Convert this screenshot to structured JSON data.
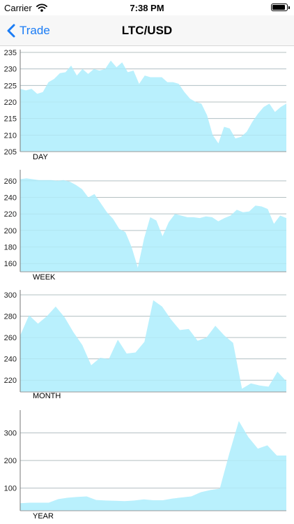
{
  "status_bar": {
    "carrier": "Carrier",
    "time": "7:38 PM",
    "battery_level": 0.9
  },
  "nav": {
    "back_label": "Trade",
    "title": "LTC/USD"
  },
  "colors": {
    "accent": "#1a7cf5",
    "area_fill": "#b9f0fd",
    "grid": "#bdbdbd"
  },
  "chart_data": [
    {
      "type": "area",
      "label": "DAY",
      "ylim": [
        205,
        235
      ],
      "yticks": [
        205,
        210,
        215,
        220,
        225,
        230,
        235
      ],
      "grid": true,
      "values": [
        224,
        223.5,
        224,
        222.5,
        223,
        226,
        227,
        228.7,
        229,
        231,
        228,
        230,
        228.5,
        230,
        229.5,
        230,
        232.5,
        230.5,
        232,
        229,
        229.5,
        225.5,
        228,
        227.5,
        227.5,
        227.5,
        226,
        226,
        225.5,
        223,
        221,
        220,
        219.5,
        216,
        210,
        207.5,
        212.5,
        212,
        209,
        209.5,
        211,
        214,
        216.5,
        218.5,
        219.5,
        217,
        218.5,
        219.5
      ]
    },
    {
      "type": "area",
      "label": "WEEK",
      "ylim": [
        150,
        270
      ],
      "yticks": [
        160,
        180,
        200,
        220,
        240,
        260
      ],
      "grid": true,
      "values": [
        262,
        263,
        262,
        261,
        261,
        261,
        260,
        261,
        259,
        255,
        250,
        240,
        244,
        233,
        222,
        214,
        202,
        198,
        180,
        155,
        190,
        216,
        212,
        193,
        210,
        220,
        218,
        216,
        216,
        215,
        217,
        216,
        211,
        215,
        218,
        225,
        222,
        223,
        230,
        229,
        226,
        208,
        218,
        215
      ]
    },
    {
      "type": "area",
      "label": "MONTH",
      "ylim": [
        209,
        302
      ],
      "yticks": [
        220,
        240,
        260,
        280,
        300
      ],
      "grid": true,
      "values": [
        262,
        281,
        273,
        280,
        289,
        279,
        265,
        253,
        234,
        241,
        240,
        258,
        245,
        246,
        256,
        295,
        289,
        277,
        267,
        268,
        257,
        260,
        271,
        262,
        255,
        212,
        217,
        215,
        214,
        228,
        219
      ]
    },
    {
      "type": "area",
      "label": "YEAR",
      "ylim": [
        18,
        375
      ],
      "yticks": [
        100,
        200,
        300
      ],
      "grid": true,
      "values": [
        45,
        47,
        47,
        47,
        60,
        65,
        68,
        70,
        57,
        55,
        54,
        53,
        55,
        59,
        56,
        56,
        62,
        66,
        70,
        85,
        93,
        98,
        225,
        343,
        285,
        243,
        255,
        218,
        218
      ]
    }
  ]
}
